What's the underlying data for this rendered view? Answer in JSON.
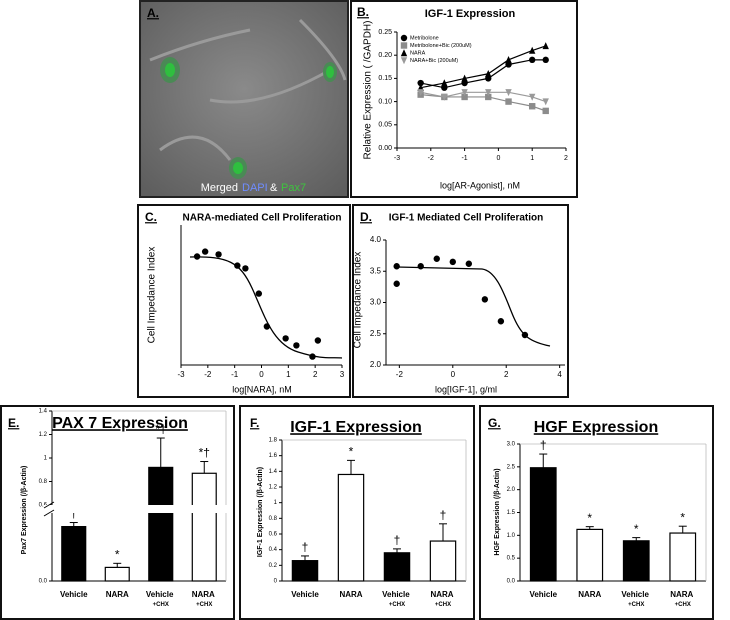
{
  "panel_a": {
    "label": "A.",
    "caption": [
      "Merged",
      "DAPI",
      "&",
      "Pax7"
    ]
  },
  "chart_data": [
    {
      "type": "line",
      "panel_label": "B.",
      "title": "IGF-1 Expression",
      "xlabel": "log[AR-Agonist], nM",
      "ylabel": "Relative Expression ( /GAPDH)",
      "x": [
        -2.3,
        -1.6,
        -1,
        -0.3,
        0.3,
        1,
        1.4
      ],
      "series": [
        {
          "name": "Metribolone",
          "color": "#000000",
          "marker": "circle",
          "values": [
            0.14,
            0.13,
            0.14,
            0.15,
            0.18,
            0.19,
            0.19
          ]
        },
        {
          "name": "Metribolone+Bic (200uM)",
          "color": "#8c8c8c",
          "marker": "square",
          "values": [
            0.115,
            0.11,
            0.11,
            0.11,
            0.1,
            0.09,
            0.08
          ]
        },
        {
          "name": "NARA",
          "color": "#000000",
          "marker": "triangle",
          "values": [
            0.13,
            0.14,
            0.15,
            0.16,
            0.19,
            0.21,
            0.22
          ]
        },
        {
          "name": "NARA+Bic (200uM)",
          "color": "#9a9a9a",
          "marker": "triangle-down",
          "values": [
            0.12,
            0.11,
            0.12,
            0.12,
            0.12,
            0.11,
            0.1
          ]
        }
      ],
      "xlim": [
        -3,
        2
      ],
      "xticks": [
        -3,
        -2,
        -1,
        0,
        1,
        2
      ],
      "ylim": [
        0,
        0.25
      ],
      "yticks": [
        {
          "value": 0,
          "label": "0.00"
        },
        {
          "value": 0.05,
          "label": "0.05"
        },
        {
          "value": 0.1,
          "label": "0.10"
        },
        {
          "value": 0.15,
          "label": "0.15"
        },
        {
          "value": 0.2,
          "label": "0.20"
        },
        {
          "value": 0.25,
          "label": "0.25"
        }
      ]
    },
    {
      "type": "scatter",
      "panel_label": "C.",
      "title": "NARA-mediated Cell Proliferation",
      "xlabel": "log[NARA], nM",
      "ylabel": "Cell Impedance Index",
      "x": [
        -2.4,
        -2.1,
        -1.6,
        -0.9,
        -0.6,
        -0.1,
        0.2,
        0.9,
        1.3,
        1.9,
        2.1
      ],
      "values": [
        2.55,
        2.62,
        2.58,
        2.42,
        2.38,
        2.02,
        1.55,
        1.38,
        1.28,
        1.12,
        1.35
      ],
      "color": "#000000",
      "xlim": [
        -3,
        3
      ],
      "xticks": [
        -3,
        -2,
        -1,
        0,
        1,
        2,
        3
      ],
      "ylim": [
        1,
        3
      ]
    },
    {
      "type": "scatter",
      "panel_label": "D.",
      "title": "IGF-1 Mediated Cell Proliferation",
      "xlabel": "log[IGF-1], g/ml",
      "ylabel": "Cell Impedance Index",
      "x": [
        -2.1,
        -2.1,
        -1.2,
        -0.6,
        0,
        0.6,
        1.2,
        1.8,
        2.7
      ],
      "values": [
        3.3,
        3.58,
        3.58,
        3.7,
        3.65,
        3.62,
        3.05,
        2.7,
        2.48
      ],
      "color": "#000000",
      "xlim": [
        -2.5,
        4.2
      ],
      "xticks": [
        -2,
        0,
        2,
        4
      ],
      "ylim": [
        2,
        4
      ],
      "yticks": [
        {
          "value": 2,
          "label": "2.0"
        },
        {
          "value": 2.5,
          "label": "2.5"
        },
        {
          "value": 3,
          "label": "3.0"
        },
        {
          "value": 3.5,
          "label": "3.5"
        },
        {
          "value": 4,
          "label": "4.0"
        }
      ]
    },
    {
      "type": "bar",
      "panel_label": "E.",
      "title": "PAX 7 Expression",
      "ylabel": "Pax7 Expression (/β-Actin)",
      "categories": [
        "Vehicle",
        "NARA",
        "Vehicle +CHX",
        "NARA +CHX"
      ],
      "values": [
        0.4,
        0.1,
        0.92,
        0.87
      ],
      "errors": [
        0.03,
        0.03,
        0.25,
        0.1
      ],
      "colors": [
        "#000000",
        "#ffffff",
        "#000000",
        "#ffffff"
      ],
      "annotations": [
        "†",
        "*",
        "*†",
        "*†"
      ],
      "ylim": [
        0,
        1.4
      ],
      "ybreak": [
        0.5,
        0.6
      ],
      "yticks": [
        {
          "value": 0,
          "label": "0.0"
        },
        0.6,
        0.8,
        1,
        1.2,
        1.4
      ]
    },
    {
      "type": "bar",
      "panel_label": "F.",
      "title": "IGF-1 Expression",
      "ylabel": "IGF-1 Expression (/β-Actin)",
      "categories": [
        "Vehicle",
        "NARA",
        "Vehicle +CHX",
        "NARA +CHX"
      ],
      "values": [
        0.26,
        1.36,
        0.36,
        0.51
      ],
      "errors": [
        0.06,
        0.18,
        0.05,
        0.22
      ],
      "colors": [
        "#000000",
        "#ffffff",
        "#000000",
        "#ffffff"
      ],
      "annotations": [
        "†",
        "*",
        "†",
        "†"
      ],
      "ylim": [
        0,
        1.8
      ],
      "yticks": [
        0,
        0.2,
        0.4,
        0.6,
        0.8,
        1,
        1.2,
        1.4,
        1.6,
        1.8
      ]
    },
    {
      "type": "bar",
      "panel_label": "G.",
      "title": "HGF Expression",
      "ylabel": "HGF Expression (/β-Actin)",
      "categories": [
        "Vehicle",
        "NARA",
        "Vehicle +CHX",
        "NARA +CHX"
      ],
      "values": [
        2.48,
        1.13,
        0.88,
        1.05
      ],
      "errors": [
        0.3,
        0.06,
        0.07,
        0.15
      ],
      "colors": [
        "#000000",
        "#ffffff",
        "#000000",
        "#ffffff"
      ],
      "annotations": [
        "†",
        "*",
        "*",
        "*"
      ],
      "ylim": [
        0,
        3
      ],
      "yticks": [
        {
          "value": 0,
          "label": "0.0"
        },
        {
          "value": 0.5,
          "label": "0.5"
        },
        {
          "value": 1,
          "label": "1.0"
        },
        {
          "value": 1.5,
          "label": "1.5"
        },
        {
          "value": 2,
          "label": "2.0"
        },
        {
          "value": 2.5,
          "label": "2.5"
        },
        {
          "value": 3,
          "label": "3.0"
        }
      ]
    }
  ]
}
